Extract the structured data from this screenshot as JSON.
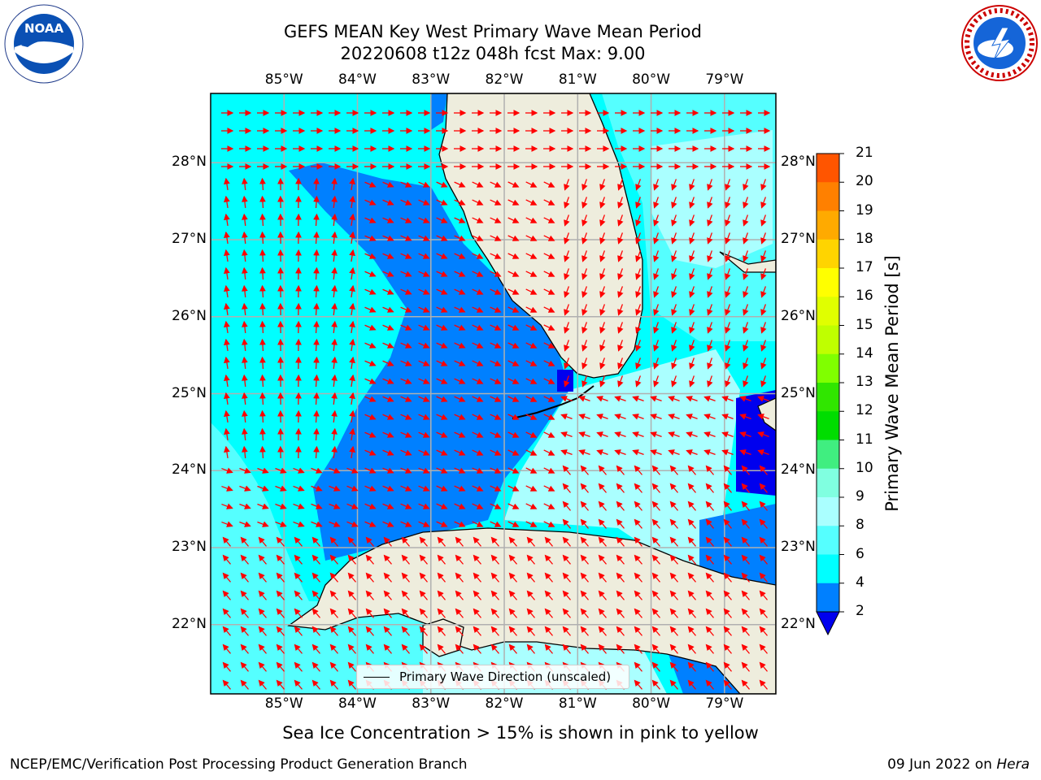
{
  "title_line1": "GEFS MEAN Key West Primary Wave Mean Period",
  "title_line2": "20220608 t12z 048h fcst   Max: 9.00",
  "logos": {
    "left": "NOAA",
    "right": "NATIONAL WEATHER SERVICE"
  },
  "x_ticks": [
    "85°W",
    "84°W",
    "83°W",
    "82°W",
    "81°W",
    "80°W",
    "79°W"
  ],
  "y_ticks": [
    "28°N",
    "27°N",
    "26°N",
    "25°N",
    "24°N",
    "23°N",
    "22°N"
  ],
  "map_extent": {
    "lon": [
      -86.0,
      -78.3
    ],
    "lat": [
      21.1,
      28.9
    ]
  },
  "colorbar": {
    "label": "Primary Wave Mean Period [s]",
    "ticks": [
      "21",
      "20",
      "19",
      "18",
      "17",
      "16",
      "15",
      "14",
      "13",
      "12",
      "11",
      "10",
      "9",
      "8",
      "6",
      "4",
      "2"
    ],
    "colors": [
      "#ff0000",
      "#ff2a00",
      "#ff5500",
      "#ff8000",
      "#ffaa00",
      "#ffd400",
      "#ffff00",
      "#e0ff00",
      "#bfff00",
      "#80ff00",
      "#30e600",
      "#00dd00",
      "#40ee80",
      "#80ffe0",
      "#aaffff",
      "#55ffff",
      "#00ffff",
      "#0080ff",
      "#0000ee"
    ]
  },
  "legend_label": "Primary Wave Direction (unscaled)",
  "subtitle": "Sea Ice Concentration > 15% is shown in pink to yellow",
  "footer_left": "NCEP/EMC/Verification Post Processing Product Generation Branch",
  "footer_date": "09 Jun 2022 on",
  "footer_host": "Hera",
  "colors": {
    "land": "#eeeddd",
    "arrow": "#ff0000",
    "grid": "#b0b0b0",
    "sea_light": "#00ffff",
    "sea_mid": "#0080ff",
    "sea_dark": "#0000ee",
    "sea_pale": "#aaffff"
  }
}
